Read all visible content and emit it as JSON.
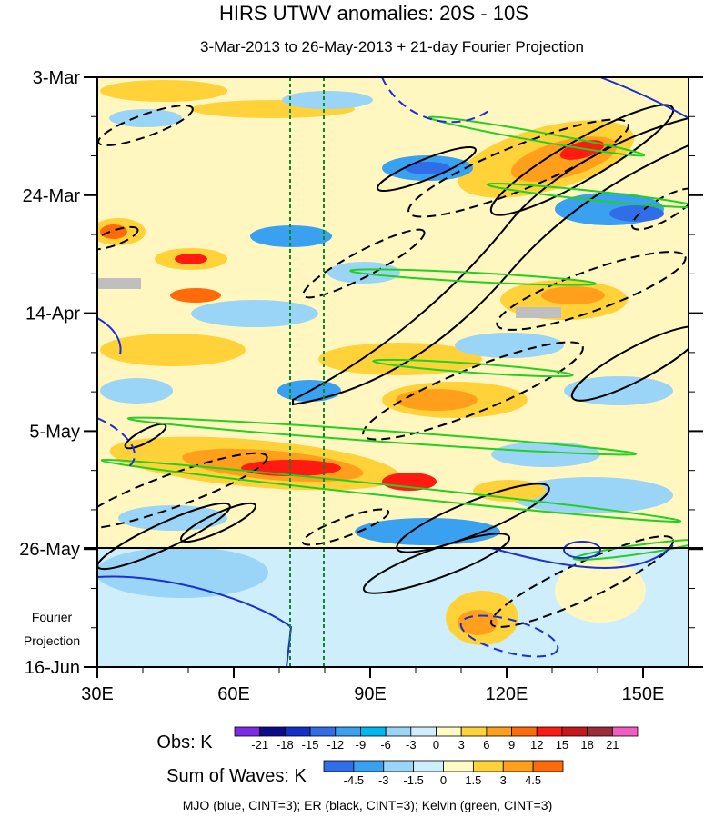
{
  "chart_data": {
    "type": "heatmap",
    "title": "HIRS UTWV anomalies: 20S - 10S",
    "subtitle": "3-Mar-2013 to 26-May-2013 + 21-day Fourier Projection",
    "x_axis": {
      "range": [
        30,
        160
      ],
      "ticks": [
        30,
        60,
        90,
        120,
        150
      ],
      "tick_labels": [
        "30E",
        "60E",
        "90E",
        "120E",
        "150E"
      ]
    },
    "y_axis": {
      "tick_labels": [
        "3-Mar",
        "24-Mar",
        "14-Apr",
        "5-May",
        "26-May",
        "16-Jun"
      ],
      "tick_days": [
        0,
        21,
        42,
        63,
        84,
        105
      ],
      "range_days": [
        0,
        105
      ],
      "reversed": true
    },
    "projection_label": [
      "Fourier",
      "Projection"
    ],
    "projection_start_day": 84,
    "reference_lines_lon": [
      72,
      80
    ],
    "obs_colorbar": {
      "label": "Obs: K",
      "levels": [
        "-21",
        "-18",
        "-15",
        "-12",
        "-9",
        "-6",
        "-3",
        "0",
        "3",
        "6",
        "9",
        "12",
        "15",
        "18",
        "21"
      ],
      "colors": [
        "#7b2ae6",
        "#0b0b8c",
        "#1030c8",
        "#2f6ee8",
        "#3aa0f0",
        "#00b8f0",
        "#9ad4f6",
        "#cdeefa",
        "#fffbc4",
        "#ffd23a",
        "#ff9f1c",
        "#ff6a0a",
        "#ff1a12",
        "#c8161c",
        "#9e2a3a",
        "#f25cc0"
      ]
    },
    "waves_colorbar": {
      "label": "Sum of Waves: K",
      "levels": [
        "-4.5",
        "-3",
        "-1.5",
        "0",
        "1.5",
        "3",
        "4.5"
      ],
      "colors": [
        "#2f6ee8",
        "#3aa0f0",
        "#9ad4f6",
        "#cdeefa",
        "#fffbc4",
        "#ffd23a",
        "#ff9f1c",
        "#ff6a0a"
      ]
    },
    "contour_legend": "MJO (blue, CINT=3); ER (black, CINT=3); Kelvin (green, CINT=3)",
    "series_colors": {
      "MJO": "#1a2fd6",
      "ER": "#000000",
      "Kelvin": "#22d022",
      "reference": "#0b8a2a"
    }
  }
}
